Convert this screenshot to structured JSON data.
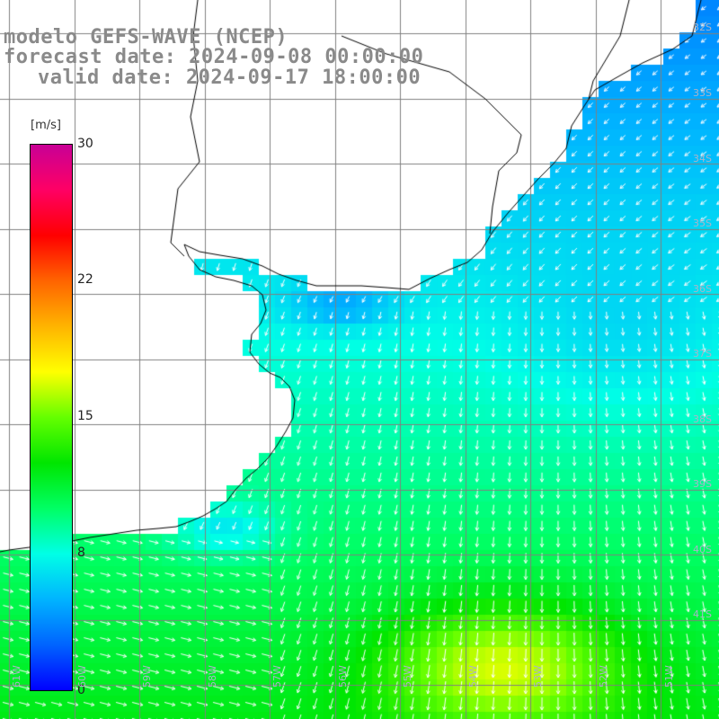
{
  "title": {
    "model": "modelo GEFS-WAVE (NCEP)",
    "forecast": "forecast date: 2024-09-08 00:00:00",
    "valid": "valid date: 2024-09-17 18:00:00"
  },
  "colorbar": {
    "units": "[m/s]",
    "ticks": [
      "30",
      "22",
      "15",
      "8",
      "0"
    ],
    "range": [
      0,
      30
    ],
    "colors": [
      "#0000ff",
      "#0064ff",
      "#00b4ff",
      "#00ffe6",
      "#00ff64",
      "#00e600",
      "#64ff00",
      "#ffff00",
      "#ffb400",
      "#ff6400",
      "#ff0000",
      "#ff0064",
      "#c80096"
    ]
  },
  "map": {
    "lat_labels": [
      "32S",
      "33S",
      "34S",
      "35S",
      "36S",
      "37S",
      "38S",
      "39S",
      "40S",
      "41S"
    ],
    "lon_labels": [
      "61W",
      "60W",
      "59W",
      "58W",
      "57W",
      "56W",
      "55W",
      "54W",
      "53W",
      "52W",
      "51W"
    ],
    "land_color": "#ffffff",
    "grid_color": "#808080",
    "coast_color": "#000000",
    "arrow_color": "#ffffff",
    "max_wind_location": "around 54W 40.5S"
  }
}
